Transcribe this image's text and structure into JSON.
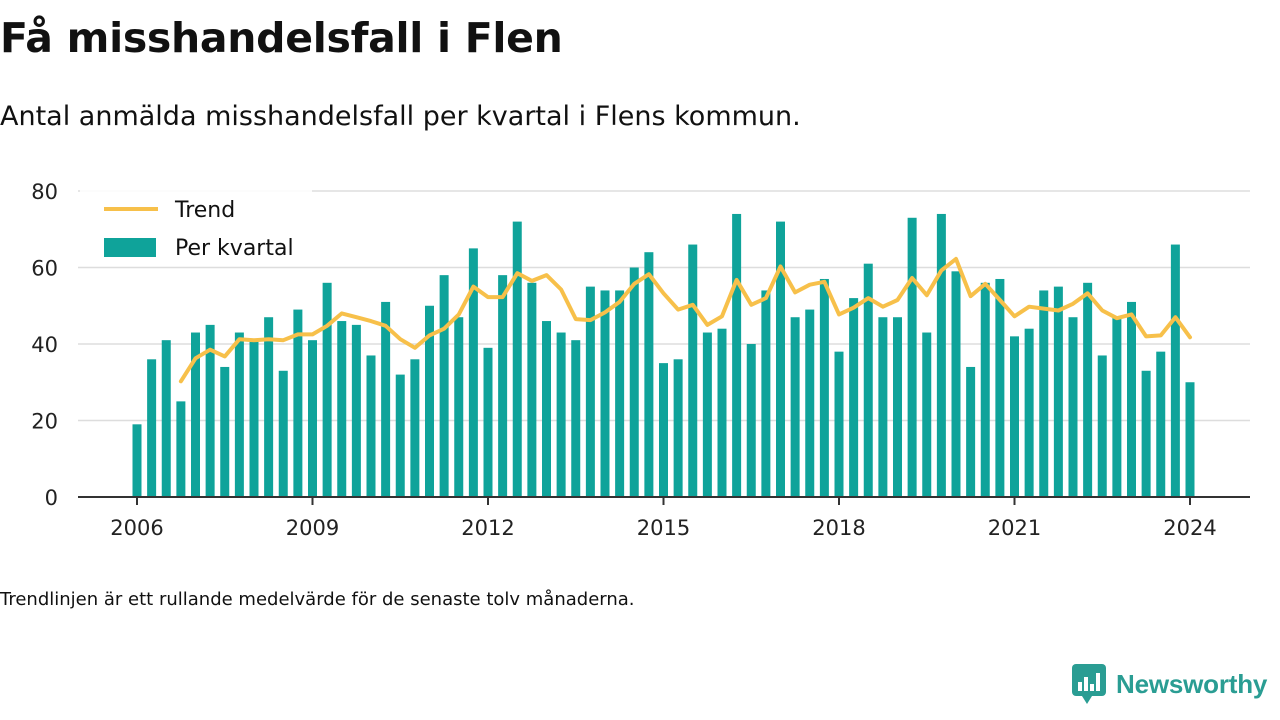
{
  "header": {
    "title": "Få misshandelsfall i Flen",
    "subtitle": "Antal anmälda misshandelsfall per kvartal i Flens kommun."
  },
  "footer": {
    "note": "Trendlinjen är ett rullande medelvärde för de senaste tolv månaderna.",
    "brand": "Newsworthy"
  },
  "colors": {
    "bar": "#0fa39a",
    "trend": "#f7c04a",
    "grid": "#dddddd",
    "axis": "#333333",
    "brand": "#2a9d93"
  },
  "chart_data": {
    "type": "bar",
    "x_ticks": [
      "2006",
      "2009",
      "2012",
      "2015",
      "2018",
      "2021",
      "2024"
    ],
    "y_ticks": [
      "0",
      "20",
      "40",
      "60",
      "80"
    ],
    "ylim": [
      0,
      80
    ],
    "xlim": [
      2005,
      2025
    ],
    "grid": true,
    "legend": {
      "position": "top-left",
      "items": [
        {
          "label": "Trend",
          "kind": "line"
        },
        {
          "label": "Per kvartal",
          "kind": "bar"
        }
      ]
    },
    "series": [
      {
        "name": "Per kvartal",
        "kind": "bar",
        "start": "2006 Q1",
        "values": [
          19,
          36,
          41,
          25,
          43,
          45,
          34,
          43,
          41,
          47,
          33,
          49,
          41,
          56,
          46,
          45,
          37,
          51,
          32,
          36,
          50,
          58,
          47,
          65,
          39,
          58,
          72,
          56,
          46,
          43,
          41,
          55,
          54,
          54,
          60,
          64,
          35,
          36,
          66,
          43,
          44,
          74,
          40,
          54,
          72,
          47,
          49,
          57,
          38,
          52,
          61,
          47,
          47,
          73,
          43,
          74,
          59,
          34,
          56,
          57,
          42,
          44,
          54,
          55,
          47,
          56,
          37,
          47,
          51,
          33,
          38,
          66,
          30
        ]
      },
      {
        "name": "Trend",
        "kind": "line",
        "start": "2006 Q4",
        "values": [
          30.25,
          36.25,
          38.5,
          36.75,
          41.25,
          41.0,
          41.25,
          41.0,
          42.5,
          42.5,
          44.75,
          48.0,
          47.0,
          46.0,
          44.75,
          41.25,
          39.0,
          42.25,
          44.0,
          47.75,
          55.0,
          52.25,
          52.25,
          58.5,
          56.5,
          58.0,
          54.25,
          46.5,
          46.25,
          48.25,
          51.0,
          55.75,
          58.25,
          53.25,
          49.0,
          50.25,
          45.0,
          47.25,
          56.75,
          50.25,
          52.0,
          60.25,
          53.5,
          55.5,
          56.25,
          47.75,
          49.5,
          52.0,
          49.75,
          51.5,
          57.25,
          52.75,
          59.25,
          62.25,
          52.5,
          55.75,
          51.5,
          47.25,
          49.75,
          49.25,
          48.75,
          50.5,
          53.25,
          48.75,
          46.75,
          47.75,
          42.0,
          42.25,
          47.0,
          41.75
        ]
      }
    ]
  }
}
